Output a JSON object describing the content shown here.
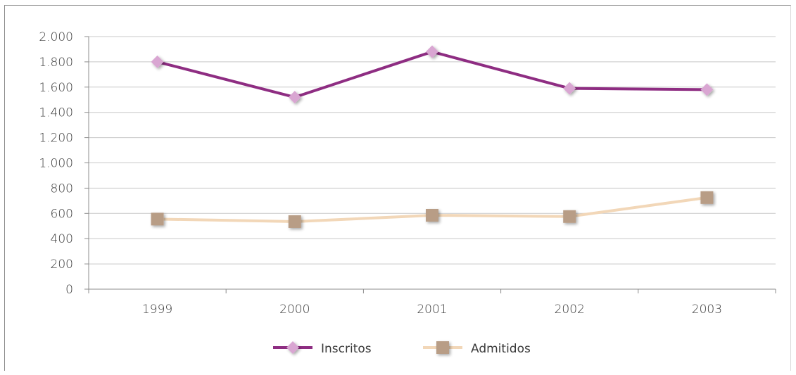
{
  "chart_data": {
    "type": "line",
    "categories": [
      "1999",
      "2000",
      "2001",
      "2002",
      "2003"
    ],
    "series": [
      {
        "name": "Inscritos",
        "values": [
          1800,
          1520,
          1880,
          1590,
          1580
        ],
        "line_color": "#8e2d82",
        "marker_color": "#d9a6d2",
        "marker": "diamond"
      },
      {
        "name": "Admitidos",
        "values": [
          555,
          535,
          585,
          575,
          725
        ],
        "line_color": "#f2d7b8",
        "marker_color": "#b89d86",
        "marker": "square"
      }
    ],
    "ylim": [
      0,
      2000
    ],
    "yticks": [
      0,
      200,
      400,
      600,
      800,
      1000,
      1200,
      1400,
      1600,
      1800,
      2000
    ],
    "ytick_labels": [
      "0",
      "200",
      "400",
      "600",
      "800",
      "1.000",
      "1.200",
      "1.400",
      "1.600",
      "1.800",
      "2.000"
    ],
    "grid": true,
    "legend_position": "bottom",
    "title": "",
    "xlabel": "",
    "ylabel": ""
  }
}
